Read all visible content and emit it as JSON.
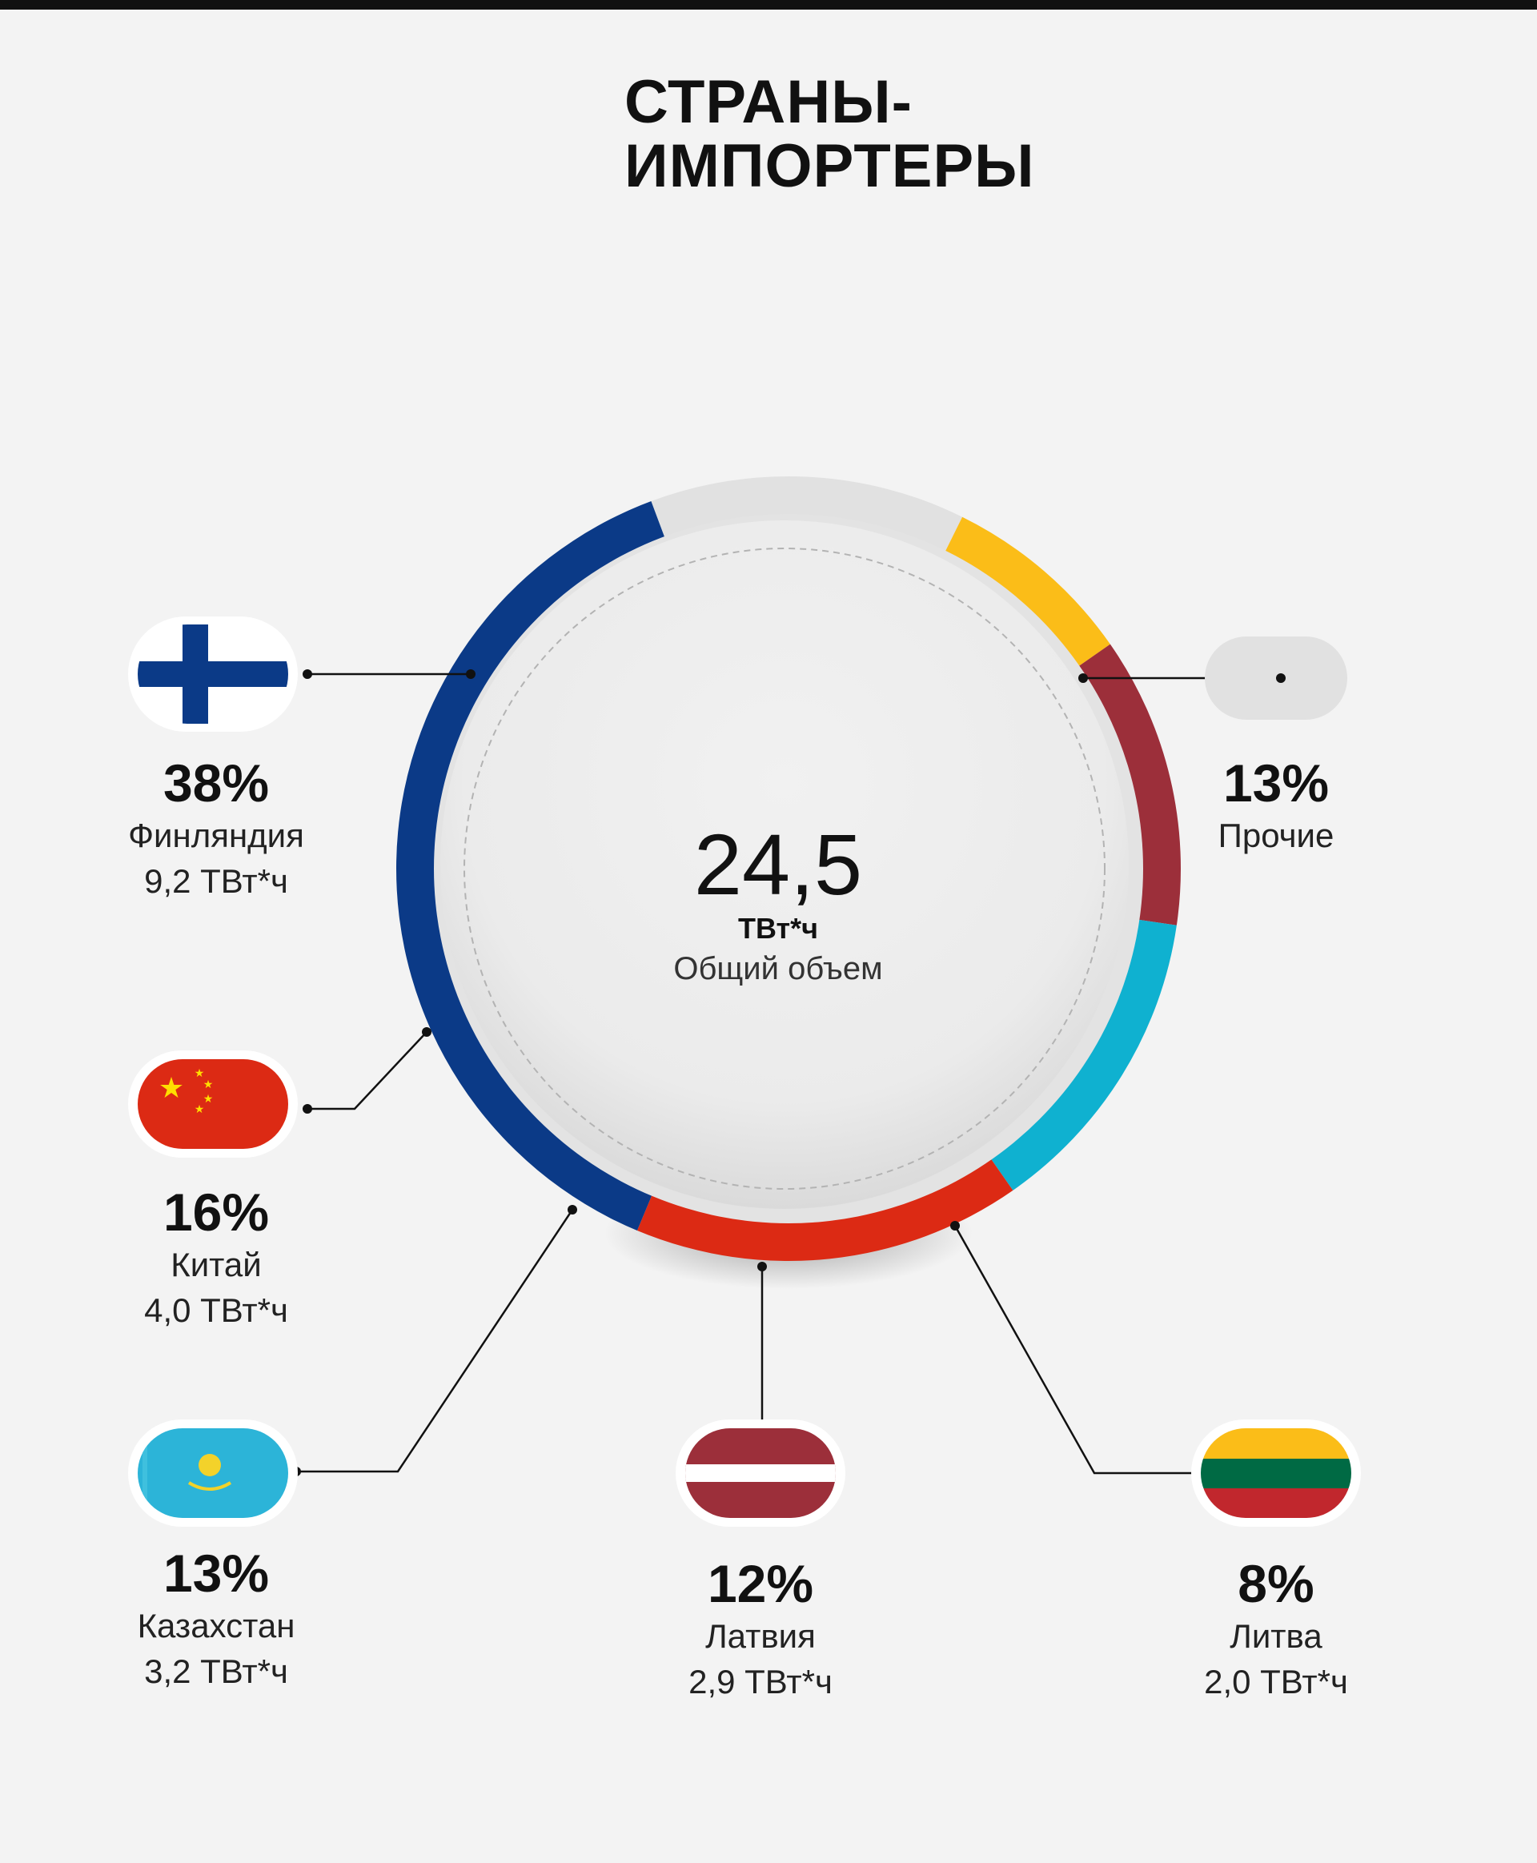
{
  "title": {
    "line1": "СТРАНЫ-",
    "line2": "ИМПОРТЕРЫ"
  },
  "center": {
    "value": "24,5",
    "unit": "ТВт*ч",
    "caption": "Общий объем"
  },
  "labels": [
    {
      "pct": "38%",
      "name": "Финляндия",
      "vol": "9,2 ТВт*ч"
    },
    {
      "pct": "16%",
      "name": "Китай",
      "vol": "4,0 ТВт*ч"
    },
    {
      "pct": "13%",
      "name": "Казахстан",
      "vol": "3,2 ТВт*ч"
    },
    {
      "pct": "12%",
      "name": "Латвия",
      "vol": "2,9 ТВт*ч"
    },
    {
      "pct": "8%",
      "name": "Литва",
      "vol": "2,0 ТВт*ч"
    },
    {
      "pct": "13%",
      "name": "Прочие"
    }
  ],
  "chart_data": {
    "type": "pie",
    "categories": [
      "Финляндия",
      "Китай",
      "Казахстан",
      "Латвия",
      "Литва",
      "Прочие"
    ],
    "values": [
      38,
      16,
      13,
      12,
      8,
      13
    ],
    "volumes": [
      9.2,
      4.0,
      3.2,
      2.9,
      2.0,
      null
    ],
    "colors": [
      "#0b3a87",
      "#dc2a14",
      "#0fb1d0",
      "#9c2f3a",
      "#fbbd18",
      "#e1e1e1"
    ],
    "flag_icons": [
      "finland-flag-icon",
      "china-flag-icon",
      "kazakhstan-flag-icon",
      "latvia-flag-icon",
      "lithuania-flag-icon",
      "others-blank-icon"
    ]
  }
}
